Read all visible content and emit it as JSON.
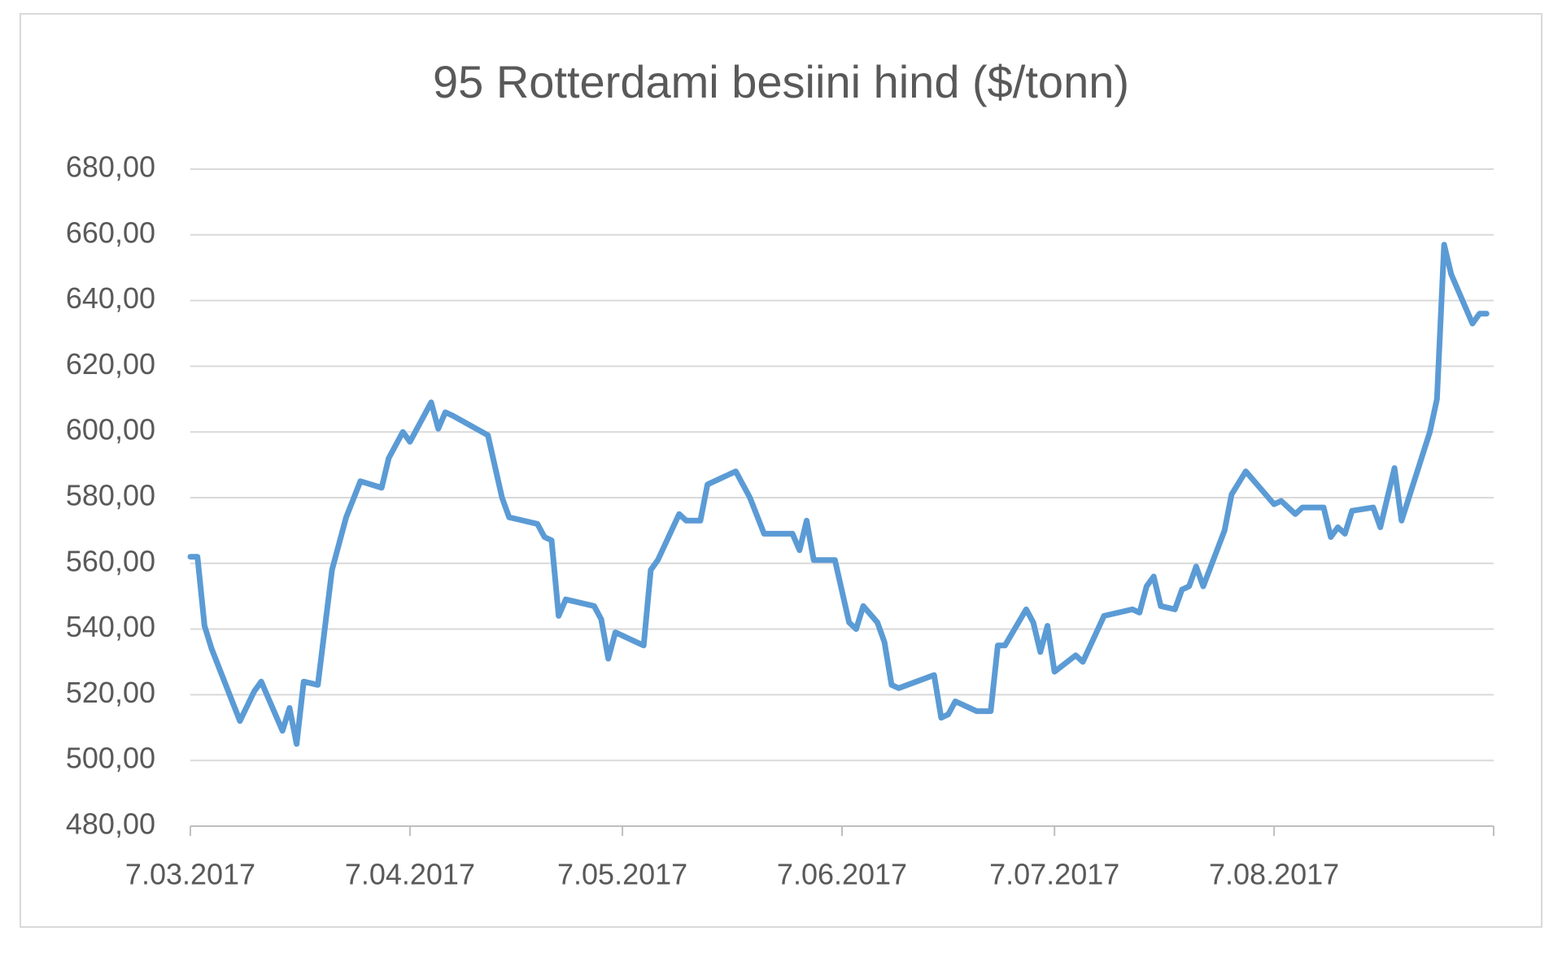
{
  "chart_data": {
    "type": "line",
    "title": "95 Rotterdami besiini hind ($/tonn)",
    "color": "#5b9bd5",
    "grid": true,
    "x": [
      "2017-03-07",
      "2017-03-08",
      "2017-03-09",
      "2017-03-10",
      "2017-03-14",
      "2017-03-16",
      "2017-03-17",
      "2017-03-20",
      "2017-03-21",
      "2017-03-22",
      "2017-03-23",
      "2017-03-25",
      "2017-03-27",
      "2017-03-29",
      "2017-03-31",
      "2017-04-03",
      "2017-04-04",
      "2017-04-06",
      "2017-04-07",
      "2017-04-10",
      "2017-04-11",
      "2017-04-12",
      "2017-04-13",
      "2017-04-18",
      "2017-04-20",
      "2017-04-21",
      "2017-04-25",
      "2017-04-26",
      "2017-04-27",
      "2017-04-28",
      "2017-04-29",
      "2017-05-03",
      "2017-05-04",
      "2017-05-05",
      "2017-05-06",
      "2017-05-09",
      "2017-05-10",
      "2017-05-11",
      "2017-05-12",
      "2017-05-15",
      "2017-05-16",
      "2017-05-18",
      "2017-05-19",
      "2017-05-23",
      "2017-05-25",
      "2017-05-27",
      "2017-05-31",
      "2017-06-01",
      "2017-06-02",
      "2017-06-03",
      "2017-06-06",
      "2017-06-08",
      "2017-06-09",
      "2017-06-10",
      "2017-06-12",
      "2017-06-13",
      "2017-06-14",
      "2017-06-15",
      "2017-06-20",
      "2017-06-21",
      "2017-06-22",
      "2017-06-23",
      "2017-06-26",
      "2017-06-28",
      "2017-06-29",
      "2017-06-30",
      "2017-07-03",
      "2017-07-04",
      "2017-07-05",
      "2017-07-06",
      "2017-07-07",
      "2017-07-10",
      "2017-07-11",
      "2017-07-14",
      "2017-07-18",
      "2017-07-19",
      "2017-07-20",
      "2017-07-21",
      "2017-07-22",
      "2017-07-24",
      "2017-07-25",
      "2017-07-26",
      "2017-07-27",
      "2017-07-28",
      "2017-07-31",
      "2017-08-01",
      "2017-08-03",
      "2017-08-07",
      "2017-08-08",
      "2017-08-10",
      "2017-08-11",
      "2017-08-14",
      "2017-08-15",
      "2017-08-16",
      "2017-08-17",
      "2017-08-18",
      "2017-08-21",
      "2017-08-22",
      "2017-08-24",
      "2017-08-25",
      "2017-08-29",
      "2017-08-30",
      "2017-08-31",
      "2017-09-01",
      "2017-09-04",
      "2017-09-05",
      "2017-09-06"
    ],
    "values": [
      562,
      562,
      541,
      534,
      512,
      521,
      524,
      509,
      516,
      505,
      524,
      523,
      558,
      574,
      585,
      583,
      592,
      600,
      597,
      609,
      601,
      606,
      605,
      599,
      580,
      574,
      572,
      568,
      567,
      544,
      549,
      547,
      543,
      531,
      539,
      536,
      535,
      558,
      561,
      575,
      573,
      573,
      584,
      588,
      580,
      569,
      569,
      564,
      573,
      561,
      561,
      542,
      540,
      547,
      542,
      536,
      523,
      522,
      526,
      513,
      514,
      518,
      515,
      515,
      535,
      535,
      546,
      542,
      533,
      541,
      527,
      532,
      530,
      544,
      546,
      545,
      553,
      556,
      547,
      546,
      552,
      553,
      559,
      553,
      570,
      581,
      588,
      578,
      579,
      575,
      577,
      577,
      568,
      571,
      569,
      576,
      577,
      571,
      589,
      573,
      600,
      610,
      657,
      648,
      633,
      636,
      636
    ],
    "xlim": [
      "2017-03-07",
      "2017-09-07"
    ],
    "xticks": [
      {
        "value": "2017-03-07",
        "label": "7.03.2017"
      },
      {
        "value": "2017-04-07",
        "label": "7.04.2017"
      },
      {
        "value": "2017-05-07",
        "label": "7.05.2017"
      },
      {
        "value": "2017-06-07",
        "label": "7.06.2017"
      },
      {
        "value": "2017-07-07",
        "label": "7.07.2017"
      },
      {
        "value": "2017-08-07",
        "label": "7.08.2017"
      }
    ],
    "ylim": [
      480,
      680
    ],
    "yticks": [
      {
        "value": 480,
        "label": "480,00"
      },
      {
        "value": 500,
        "label": "500,00"
      },
      {
        "value": 520,
        "label": "520,00"
      },
      {
        "value": 540,
        "label": "540,00"
      },
      {
        "value": 560,
        "label": "560,00"
      },
      {
        "value": 580,
        "label": "580,00"
      },
      {
        "value": 600,
        "label": "600,00"
      },
      {
        "value": 620,
        "label": "620,00"
      },
      {
        "value": 640,
        "label": "640,00"
      },
      {
        "value": 660,
        "label": "660,00"
      },
      {
        "value": 680,
        "label": "680,00"
      }
    ]
  }
}
